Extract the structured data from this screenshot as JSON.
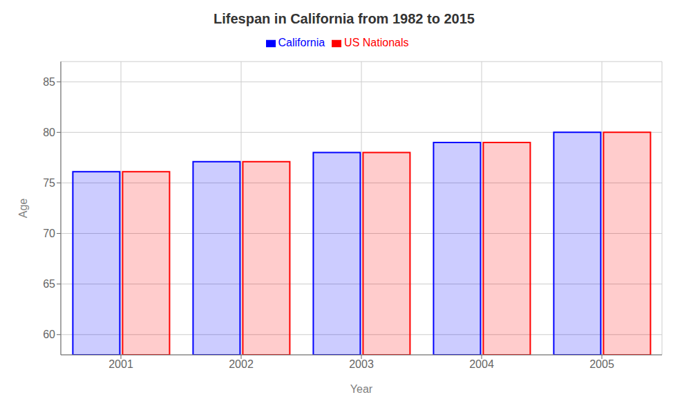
{
  "chart_data": {
    "type": "bar",
    "title": "Lifespan in California from 1982 to 2015",
    "xlabel": "Year",
    "ylabel": "Age",
    "categories": [
      "2001",
      "2002",
      "2003",
      "2004",
      "2005"
    ],
    "series": [
      {
        "name": "California",
        "color": "#0000ff",
        "values": [
          76.1,
          77.1,
          78.0,
          79.0,
          80.0
        ]
      },
      {
        "name": "US Nationals",
        "color": "#ff0000",
        "values": [
          76.1,
          77.1,
          78.0,
          79.0,
          80.0
        ]
      }
    ],
    "ylim": [
      58,
      87
    ],
    "yticks": [
      60,
      65,
      70,
      75,
      80,
      85
    ],
    "grid": true,
    "legend": "top"
  }
}
